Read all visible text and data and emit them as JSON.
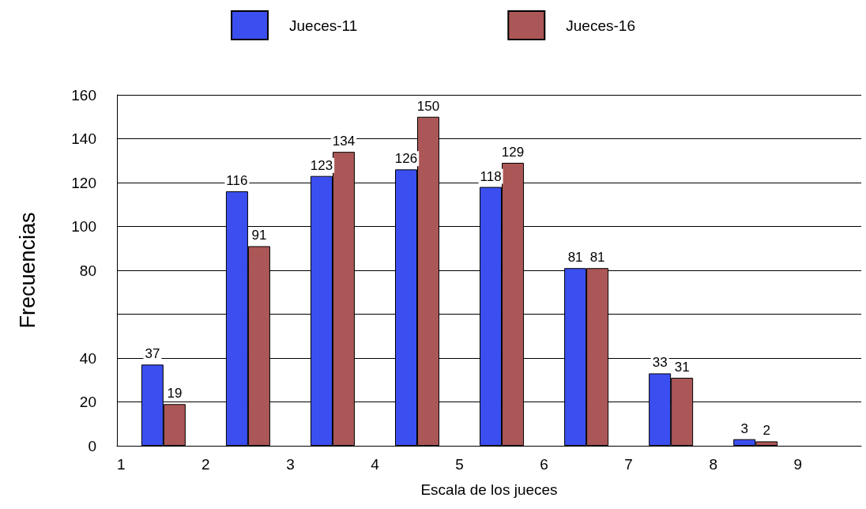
{
  "chart_data": {
    "type": "bar",
    "xlabel": "Escala de los jueces",
    "ylabel": "Frecuencias",
    "x": [
      1.5,
      2.5,
      3.5,
      4.5,
      5.5,
      6.5,
      7.5,
      8.5
    ],
    "series": [
      {
        "name": "Jueces-11",
        "color": "#3b4ff0",
        "values": [
          37,
          116,
          123,
          126,
          118,
          81,
          33,
          3
        ]
      },
      {
        "name": "Jueces-16",
        "color": "#ab5757",
        "values": [
          19,
          91,
          134,
          150,
          129,
          81,
          31,
          2
        ]
      }
    ],
    "xlim": [
      0.95,
      9.75
    ],
    "xticks": [
      1,
      2,
      3,
      4,
      5,
      6,
      7,
      8,
      9
    ],
    "ylim": [
      0,
      160
    ],
    "yticks": [
      0,
      20,
      40,
      {
        "value": 60,
        "label": null
      },
      80,
      100,
      120,
      140,
      160
    ],
    "grid": "y",
    "legend": "top",
    "data_labels": true
  }
}
